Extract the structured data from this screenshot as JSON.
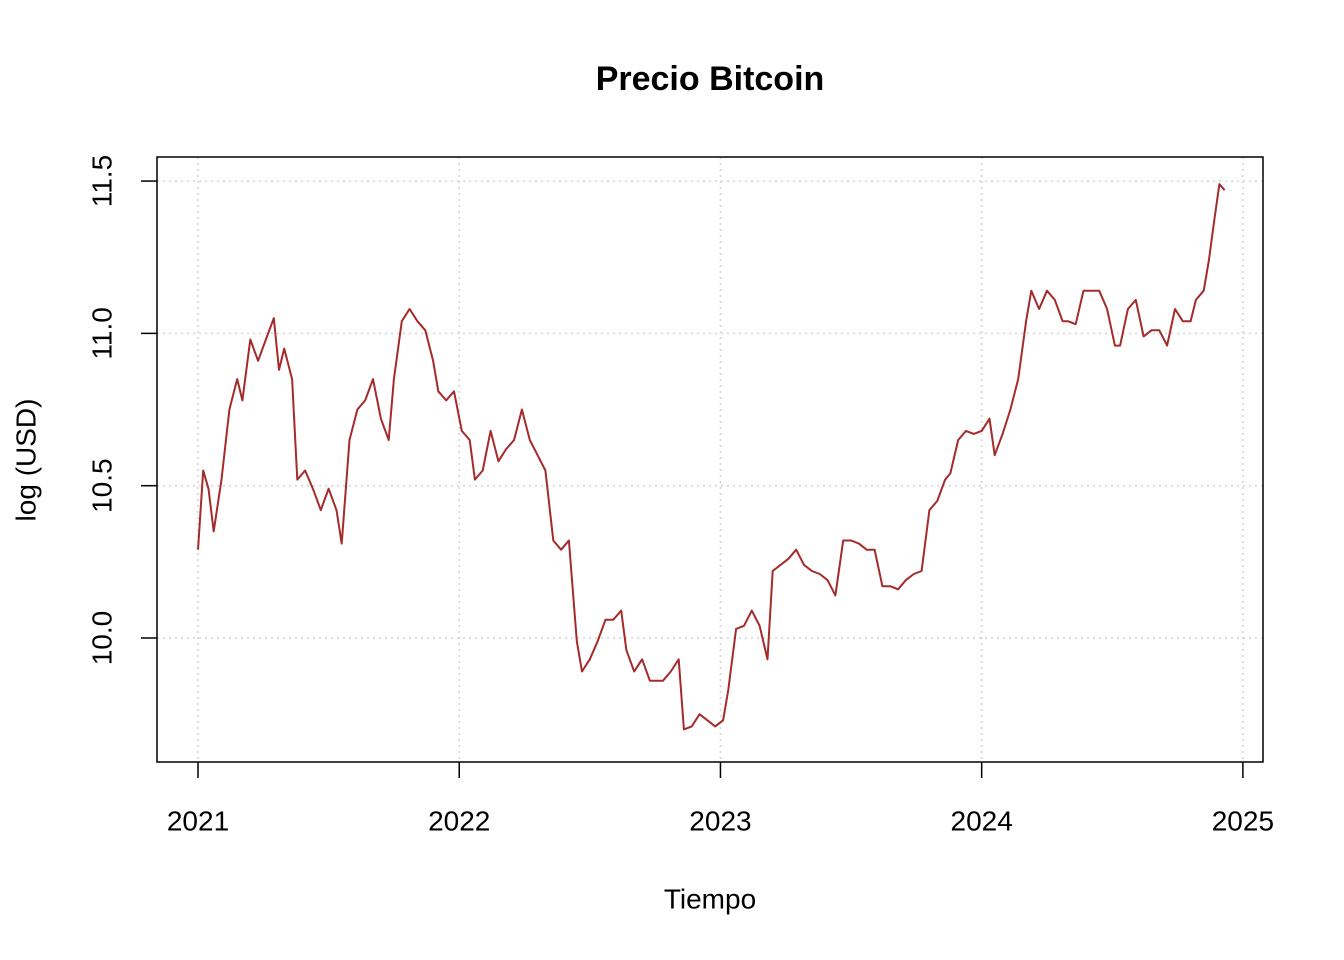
{
  "chart_data": {
    "type": "line",
    "title": "Precio Bitcoin",
    "x_label": "Tiempo",
    "y_label": "log (USD)",
    "x": [
      2021.0,
      2021.02,
      2021.04,
      2021.06,
      2021.09,
      2021.12,
      2021.15,
      2021.17,
      2021.2,
      2021.23,
      2021.26,
      2021.29,
      2021.31,
      2021.33,
      2021.36,
      2021.38,
      2021.41,
      2021.44,
      2021.47,
      2021.5,
      2021.53,
      2021.55,
      2021.58,
      2021.61,
      2021.64,
      2021.67,
      2021.7,
      2021.73,
      2021.75,
      2021.78,
      2021.81,
      2021.84,
      2021.87,
      2021.9,
      2021.92,
      2021.95,
      2021.98,
      2022.01,
      2022.04,
      2022.06,
      2022.09,
      2022.12,
      2022.15,
      2022.18,
      2022.21,
      2022.24,
      2022.27,
      2022.3,
      2022.33,
      2022.36,
      2022.39,
      2022.42,
      2022.45,
      2022.47,
      2022.5,
      2022.53,
      2022.56,
      2022.59,
      2022.62,
      2022.64,
      2022.67,
      2022.7,
      2022.73,
      2022.76,
      2022.78,
      2022.81,
      2022.84,
      2022.86,
      2022.89,
      2022.92,
      2022.95,
      2022.98,
      2023.01,
      2023.03,
      2023.06,
      2023.09,
      2023.12,
      2023.15,
      2023.18,
      2023.2,
      2023.23,
      2023.26,
      2023.29,
      2023.32,
      2023.35,
      2023.38,
      2023.41,
      2023.44,
      2023.47,
      2023.5,
      2023.53,
      2023.56,
      2023.59,
      2023.62,
      2023.65,
      2023.68,
      2023.71,
      2023.74,
      2023.77,
      2023.8,
      2023.83,
      2023.86,
      2023.88,
      2023.91,
      2023.94,
      2023.97,
      2024.0,
      2024.03,
      2024.05,
      2024.08,
      2024.11,
      2024.14,
      2024.17,
      2024.19,
      2024.22,
      2024.25,
      2024.28,
      2024.31,
      2024.33,
      2024.36,
      2024.39,
      2024.42,
      2024.45,
      2024.48,
      2024.51,
      2024.53,
      2024.56,
      2024.59,
      2024.62,
      2024.65,
      2024.68,
      2024.71,
      2024.74,
      2024.77,
      2024.8,
      2024.82,
      2024.85,
      2024.87,
      2024.89,
      2024.91,
      2024.93
    ],
    "series": [
      {
        "name": "log (USD)",
        "color": "#a52a2a",
        "values": [
          10.29,
          10.55,
          10.49,
          10.35,
          10.52,
          10.75,
          10.85,
          10.78,
          10.98,
          10.91,
          10.98,
          11.05,
          10.88,
          10.95,
          10.85,
          10.52,
          10.55,
          10.49,
          10.42,
          10.49,
          10.42,
          10.31,
          10.65,
          10.75,
          10.78,
          10.85,
          10.72,
          10.65,
          10.85,
          11.04,
          11.08,
          11.04,
          11.01,
          10.91,
          10.81,
          10.78,
          10.81,
          10.68,
          10.65,
          10.52,
          10.55,
          10.68,
          10.58,
          10.62,
          10.65,
          10.75,
          10.65,
          10.6,
          10.55,
          10.32,
          10.29,
          10.32,
          9.99,
          9.89,
          9.93,
          9.99,
          10.06,
          10.06,
          10.09,
          9.96,
          9.89,
          9.93,
          9.86,
          9.86,
          9.86,
          9.89,
          9.93,
          9.7,
          9.71,
          9.75,
          9.73,
          9.71,
          9.73,
          9.83,
          10.03,
          10.04,
          10.09,
          10.04,
          9.93,
          10.22,
          10.24,
          10.26,
          10.29,
          10.24,
          10.22,
          10.21,
          10.19,
          10.14,
          10.32,
          10.32,
          10.31,
          10.29,
          10.29,
          10.17,
          10.17,
          10.16,
          10.19,
          10.21,
          10.22,
          10.42,
          10.45,
          10.52,
          10.54,
          10.65,
          10.68,
          10.67,
          10.68,
          10.72,
          10.6,
          10.67,
          10.75,
          10.85,
          11.04,
          11.14,
          11.08,
          11.14,
          11.11,
          11.04,
          11.04,
          11.03,
          11.14,
          11.14,
          11.14,
          11.08,
          10.96,
          10.96,
          11.08,
          11.11,
          10.99,
          11.01,
          11.01,
          10.96,
          11.08,
          11.04,
          11.04,
          11.11,
          11.14,
          11.24,
          11.37,
          11.49,
          11.47
        ]
      }
    ],
    "xlim": [
      2020.843,
      2025.077
    ],
    "ylim": [
      9.593,
      11.579
    ],
    "xticks": [
      2021,
      2022,
      2023,
      2024,
      2025
    ],
    "yticks": [
      {
        "value": 10,
        "label": "10.0"
      },
      10.5,
      {
        "value": 11,
        "label": "11.0"
      },
      11.5
    ],
    "grid": true
  }
}
